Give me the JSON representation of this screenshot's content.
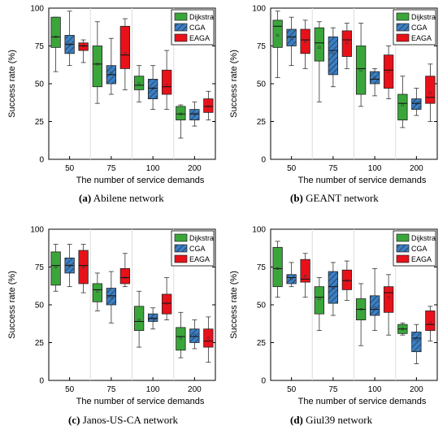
{
  "legend_colors": {
    "Dijkstra": "#3aa63a",
    "CGA": "#3b7fc4",
    "EAGA": "#e8111a"
  },
  "legend_hatch": {
    "Dijkstra": false,
    "CGA": true,
    "EAGA": false
  },
  "captions": [
    {
      "letter": "(a)",
      "text": "Abilene network"
    },
    {
      "letter": "(b)",
      "text": "GEANT network"
    },
    {
      "letter": "(c)",
      "text": "Janos-US-CA network"
    },
    {
      "letter": "(d)",
      "text": "Giul39 network"
    }
  ],
  "chart_data": [
    {
      "type": "box",
      "xlabel": "The number of service demands",
      "ylabel": "Success rate (%)",
      "ylim": [
        0,
        100
      ],
      "yticks": [
        0,
        25,
        50,
        75,
        100
      ],
      "categories": [
        "50",
        "75",
        "100",
        "200"
      ],
      "legend": "top-right",
      "series": [
        {
          "name": "Dijkstra",
          "boxes": [
            {
              "min": 58,
              "q1": 74,
              "median": 81,
              "q3": 94,
              "max": 94,
              "mean": 81
            },
            {
              "min": 37,
              "q1": 48,
              "median": 63,
              "q3": 75,
              "max": 91,
              "mean": 63
            },
            {
              "min": 38,
              "q1": 46,
              "median": 49,
              "q3": 55,
              "max": 62,
              "mean": 50
            },
            {
              "min": 14,
              "q1": 26,
              "median": 30,
              "q3": 35,
              "max": 36,
              "mean": 30
            }
          ]
        },
        {
          "name": "CGA",
          "boxes": [
            {
              "min": 62,
              "q1": 70,
              "median": 76,
              "q3": 82,
              "max": 98,
              "mean": 76
            },
            {
              "min": 43,
              "q1": 50,
              "median": 56,
              "q3": 62,
              "max": 80,
              "mean": 57
            },
            {
              "min": 33,
              "q1": 40,
              "median": 47,
              "q3": 53,
              "max": 62,
              "mean": 47
            },
            {
              "min": 22,
              "q1": 26,
              "median": 30,
              "q3": 33,
              "max": 38,
              "mean": 30
            }
          ]
        },
        {
          "name": "EAGA",
          "boxes": [
            {
              "min": 64,
              "q1": 72,
              "median": 75,
              "q3": 77,
              "max": 79,
              "mean": 75
            },
            {
              "min": 46,
              "q1": 60,
              "median": 69,
              "q3": 88,
              "max": 93,
              "mean": 70
            },
            {
              "min": 33,
              "q1": 43,
              "median": 48,
              "q3": 59,
              "max": 72,
              "mean": 49
            },
            {
              "min": 26,
              "q1": 31,
              "median": 35,
              "q3": 40,
              "max": 45,
              "mean": 35
            }
          ]
        }
      ]
    },
    {
      "type": "box",
      "xlabel": "The number of service demands",
      "ylabel": "Success rate (%)",
      "ylim": [
        0,
        100
      ],
      "yticks": [
        0,
        25,
        50,
        75,
        100
      ],
      "categories": [
        "50",
        "75",
        "100",
        "200"
      ],
      "legend": "top-right",
      "series": [
        {
          "name": "Dijkstra",
          "boxes": [
            {
              "min": 54,
              "q1": 74,
              "median": 88,
              "q3": 92,
              "max": 98,
              "mean": 82
            },
            {
              "min": 38,
              "q1": 65,
              "median": 77,
              "q3": 87,
              "max": 91,
              "mean": 74
            },
            {
              "min": 35,
              "q1": 43,
              "median": 60,
              "q3": 75,
              "max": 90,
              "mean": 59
            },
            {
              "min": 21,
              "q1": 26,
              "median": 37,
              "q3": 43,
              "max": 55,
              "mean": 36
            }
          ]
        },
        {
          "name": "CGA",
          "boxes": [
            {
              "min": 62,
              "q1": 75,
              "median": 81,
              "q3": 86,
              "max": 94,
              "mean": 80
            },
            {
              "min": 48,
              "q1": 56,
              "median": 72,
              "q3": 81,
              "max": 87,
              "mean": 70
            },
            {
              "min": 42,
              "q1": 50,
              "median": 53,
              "q3": 58,
              "max": 60,
              "mean": 54
            },
            {
              "min": 29,
              "q1": 33,
              "median": 37,
              "q3": 40,
              "max": 47,
              "mean": 37
            }
          ]
        },
        {
          "name": "EAGA",
          "boxes": [
            {
              "min": 60,
              "q1": 70,
              "median": 79,
              "q3": 86,
              "max": 92,
              "mean": 78
            },
            {
              "min": 60,
              "q1": 68,
              "median": 79,
              "q3": 85,
              "max": 90,
              "mean": 77
            },
            {
              "min": 40,
              "q1": 47,
              "median": 59,
              "q3": 69,
              "max": 75,
              "mean": 58
            },
            {
              "min": 25,
              "q1": 37,
              "median": 41,
              "q3": 55,
              "max": 63,
              "mean": 44
            }
          ]
        }
      ]
    },
    {
      "type": "box",
      "xlabel": "The number of service demands",
      "ylabel": "Success rate (%)",
      "ylim": [
        0,
        100
      ],
      "yticks": [
        0,
        25,
        50,
        75,
        100
      ],
      "categories": [
        "50",
        "75",
        "100",
        "200"
      ],
      "legend": "top-right",
      "series": [
        {
          "name": "Dijkstra",
          "boxes": [
            {
              "min": 59,
              "q1": 63,
              "median": 76,
              "q3": 85,
              "max": 90,
              "mean": 75
            },
            {
              "min": 46,
              "q1": 52,
              "median": 60,
              "q3": 64,
              "max": 71,
              "mean": 59
            },
            {
              "min": 22,
              "q1": 33,
              "median": 39,
              "q3": 49,
              "max": 59,
              "mean": 40
            },
            {
              "min": 15,
              "q1": 20,
              "median": 29,
              "q3": 35,
              "max": 45,
              "mean": 28
            }
          ]
        },
        {
          "name": "CGA",
          "boxes": [
            {
              "min": 62,
              "q1": 71,
              "median": 76,
              "q3": 81,
              "max": 90,
              "mean": 76
            },
            {
              "min": 38,
              "q1": 50,
              "median": 56,
              "q3": 61,
              "max": 72,
              "mean": 55
            },
            {
              "min": 34,
              "q1": 39,
              "median": 41,
              "q3": 44,
              "max": 48,
              "mean": 41
            },
            {
              "min": 21,
              "q1": 25,
              "median": 29,
              "q3": 34,
              "max": 40,
              "mean": 30
            }
          ]
        },
        {
          "name": "EAGA",
          "boxes": [
            {
              "min": 58,
              "q1": 64,
              "median": 76,
              "q3": 86,
              "max": 90,
              "mean": 75
            },
            {
              "min": 62,
              "q1": 64,
              "median": 68,
              "q3": 74,
              "max": 84,
              "mean": 68
            },
            {
              "min": 40,
              "q1": 44,
              "median": 51,
              "q3": 57,
              "max": 68,
              "mean": 51
            },
            {
              "min": 12,
              "q1": 22,
              "median": 26,
              "q3": 34,
              "max": 42,
              "mean": 28
            }
          ]
        }
      ]
    },
    {
      "type": "box",
      "xlabel": "The number of service demands",
      "ylabel": "Success rate (%)",
      "ylim": [
        0,
        100
      ],
      "yticks": [
        0,
        25,
        50,
        75,
        100
      ],
      "categories": [
        "50",
        "75",
        "100",
        "200"
      ],
      "legend": "top-right",
      "series": [
        {
          "name": "Dijkstra",
          "boxes": [
            {
              "min": 55,
              "q1": 62,
              "median": 74,
              "q3": 88,
              "max": 92,
              "mean": 74
            },
            {
              "min": 33,
              "q1": 44,
              "median": 55,
              "q3": 62,
              "max": 68,
              "mean": 54
            },
            {
              "min": 23,
              "q1": 40,
              "median": 47,
              "q3": 54,
              "max": 64,
              "mean": 47
            },
            {
              "min": 30,
              "q1": 31,
              "median": 34,
              "q3": 37,
              "max": 38,
              "mean": 34
            }
          ]
        },
        {
          "name": "CGA",
          "boxes": [
            {
              "min": 62,
              "q1": 64,
              "median": 68,
              "q3": 70,
              "max": 78,
              "mean": 67
            },
            {
              "min": 43,
              "q1": 51,
              "median": 62,
              "q3": 72,
              "max": 78,
              "mean": 61
            },
            {
              "min": 33,
              "q1": 43,
              "median": 47,
              "q3": 56,
              "max": 74,
              "mean": 48
            },
            {
              "min": 11,
              "q1": 19,
              "median": 28,
              "q3": 32,
              "max": 37,
              "mean": 27
            }
          ]
        },
        {
          "name": "EAGA",
          "boxes": [
            {
              "min": 55,
              "q1": 65,
              "median": 67,
              "q3": 80,
              "max": 84,
              "mean": 69
            },
            {
              "min": 53,
              "q1": 60,
              "median": 66,
              "q3": 73,
              "max": 79,
              "mean": 66
            },
            {
              "min": 30,
              "q1": 45,
              "median": 58,
              "q3": 62,
              "max": 70,
              "mean": 55
            },
            {
              "min": 26,
              "q1": 33,
              "median": 37,
              "q3": 46,
              "max": 49,
              "mean": 38
            }
          ]
        }
      ]
    }
  ]
}
